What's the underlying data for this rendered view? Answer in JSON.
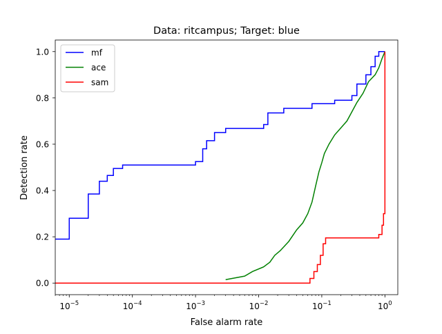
{
  "chart_data": {
    "type": "line",
    "title": "Data: ritcampus; Target: blue",
    "xlabel": "False alarm rate",
    "ylabel": "Detection rate",
    "xscale": "log",
    "xlim": [
      6e-06,
      1.6
    ],
    "ylim": [
      -0.05,
      1.05
    ],
    "x_ticks": [
      {
        "value": 1e-05,
        "base": "10",
        "exp": "−5"
      },
      {
        "value": 0.0001,
        "base": "10",
        "exp": "−4"
      },
      {
        "value": 0.001,
        "base": "10",
        "exp": "−3"
      },
      {
        "value": 0.01,
        "base": "10",
        "exp": "−2"
      },
      {
        "value": 0.1,
        "base": "10",
        "exp": "−1"
      },
      {
        "value": 1,
        "base": "10",
        "exp": "0"
      }
    ],
    "y_ticks": [
      {
        "value": 0.0,
        "label": "0.0"
      },
      {
        "value": 0.2,
        "label": "0.2"
      },
      {
        "value": 0.4,
        "label": "0.4"
      },
      {
        "value": 0.6,
        "label": "0.6"
      },
      {
        "value": 0.8,
        "label": "0.8"
      },
      {
        "value": 1.0,
        "label": "1.0"
      }
    ],
    "grid": false,
    "legend_position": "top-left",
    "series": [
      {
        "name": "mf",
        "color": "#0000ff",
        "x": [
          6e-06,
          1e-05,
          1e-05,
          2e-05,
          2e-05,
          3e-05,
          3e-05,
          4e-05,
          4e-05,
          5e-05,
          5e-05,
          7e-05,
          7e-05,
          0.001,
          0.001,
          0.0013,
          0.0013,
          0.0015,
          0.0015,
          0.002,
          0.002,
          0.003,
          0.003,
          0.0045,
          0.0045,
          0.012,
          0.012,
          0.014,
          0.014,
          0.025,
          0.025,
          0.07,
          0.07,
          0.16,
          0.16,
          0.3,
          0.3,
          0.36,
          0.36,
          0.5,
          0.5,
          0.6,
          0.6,
          0.7,
          0.7,
          0.8,
          0.8,
          0.9,
          0.9,
          1.0
        ],
        "y": [
          0.19,
          0.19,
          0.28,
          0.28,
          0.385,
          0.385,
          0.44,
          0.44,
          0.465,
          0.465,
          0.495,
          0.495,
          0.51,
          0.51,
          0.525,
          0.525,
          0.58,
          0.58,
          0.615,
          0.615,
          0.65,
          0.65,
          0.668,
          0.668,
          0.668,
          0.668,
          0.685,
          0.685,
          0.735,
          0.735,
          0.755,
          0.755,
          0.775,
          0.775,
          0.79,
          0.79,
          0.81,
          0.81,
          0.86,
          0.86,
          0.9,
          0.9,
          0.935,
          0.935,
          0.98,
          0.98,
          1.0,
          1.0,
          1.0,
          1.0
        ]
      },
      {
        "name": "ace",
        "color": "#008000",
        "x": [
          6e-06,
          0.003,
          0.003,
          0.006,
          0.006,
          0.008,
          0.008,
          0.012,
          0.012,
          0.015,
          0.015,
          0.018,
          0.018,
          0.022,
          0.022,
          0.03,
          0.03,
          0.04,
          0.04,
          0.05,
          0.05,
          0.06,
          0.06,
          0.07,
          0.07,
          0.08,
          0.08,
          0.09,
          0.09,
          0.1,
          0.1,
          0.11,
          0.11,
          0.13,
          0.13,
          0.16,
          0.16,
          0.2,
          0.2,
          0.25,
          0.25,
          0.3,
          0.3,
          0.36,
          0.36,
          0.45,
          0.45,
          0.55,
          0.55,
          0.7,
          0.7,
          0.8,
          0.8,
          0.9,
          0.9,
          1.0
        ],
        "y": [
          null,
          0.015,
          0.015,
          0.03,
          0.03,
          0.05,
          0.05,
          0.07,
          0.07,
          0.09,
          0.09,
          0.12,
          0.12,
          0.14,
          0.14,
          0.18,
          0.18,
          0.23,
          0.23,
          0.26,
          0.26,
          0.3,
          0.3,
          0.35,
          0.35,
          0.42,
          0.42,
          0.48,
          0.48,
          0.52,
          0.52,
          0.56,
          0.56,
          0.6,
          0.6,
          0.64,
          0.64,
          0.67,
          0.67,
          0.7,
          0.7,
          0.74,
          0.74,
          0.78,
          0.78,
          0.82,
          0.82,
          0.87,
          0.87,
          0.9,
          0.9,
          0.93,
          0.93,
          0.97,
          0.97,
          1.0
        ]
      },
      {
        "name": "sam",
        "color": "#ff0000",
        "x": [
          6e-06,
          0.065,
          0.065,
          0.075,
          0.075,
          0.085,
          0.085,
          0.095,
          0.095,
          0.105,
          0.105,
          0.115,
          0.115,
          0.13,
          0.13,
          0.8,
          0.8,
          0.9,
          0.9,
          0.95,
          0.95,
          1.0,
          1.0
        ],
        "y": [
          0.0,
          0.0,
          0.02,
          0.02,
          0.05,
          0.05,
          0.08,
          0.08,
          0.12,
          0.12,
          0.17,
          0.17,
          0.195,
          0.195,
          0.195,
          0.195,
          0.21,
          0.21,
          0.25,
          0.25,
          0.3,
          0.3,
          1.0
        ]
      }
    ]
  }
}
